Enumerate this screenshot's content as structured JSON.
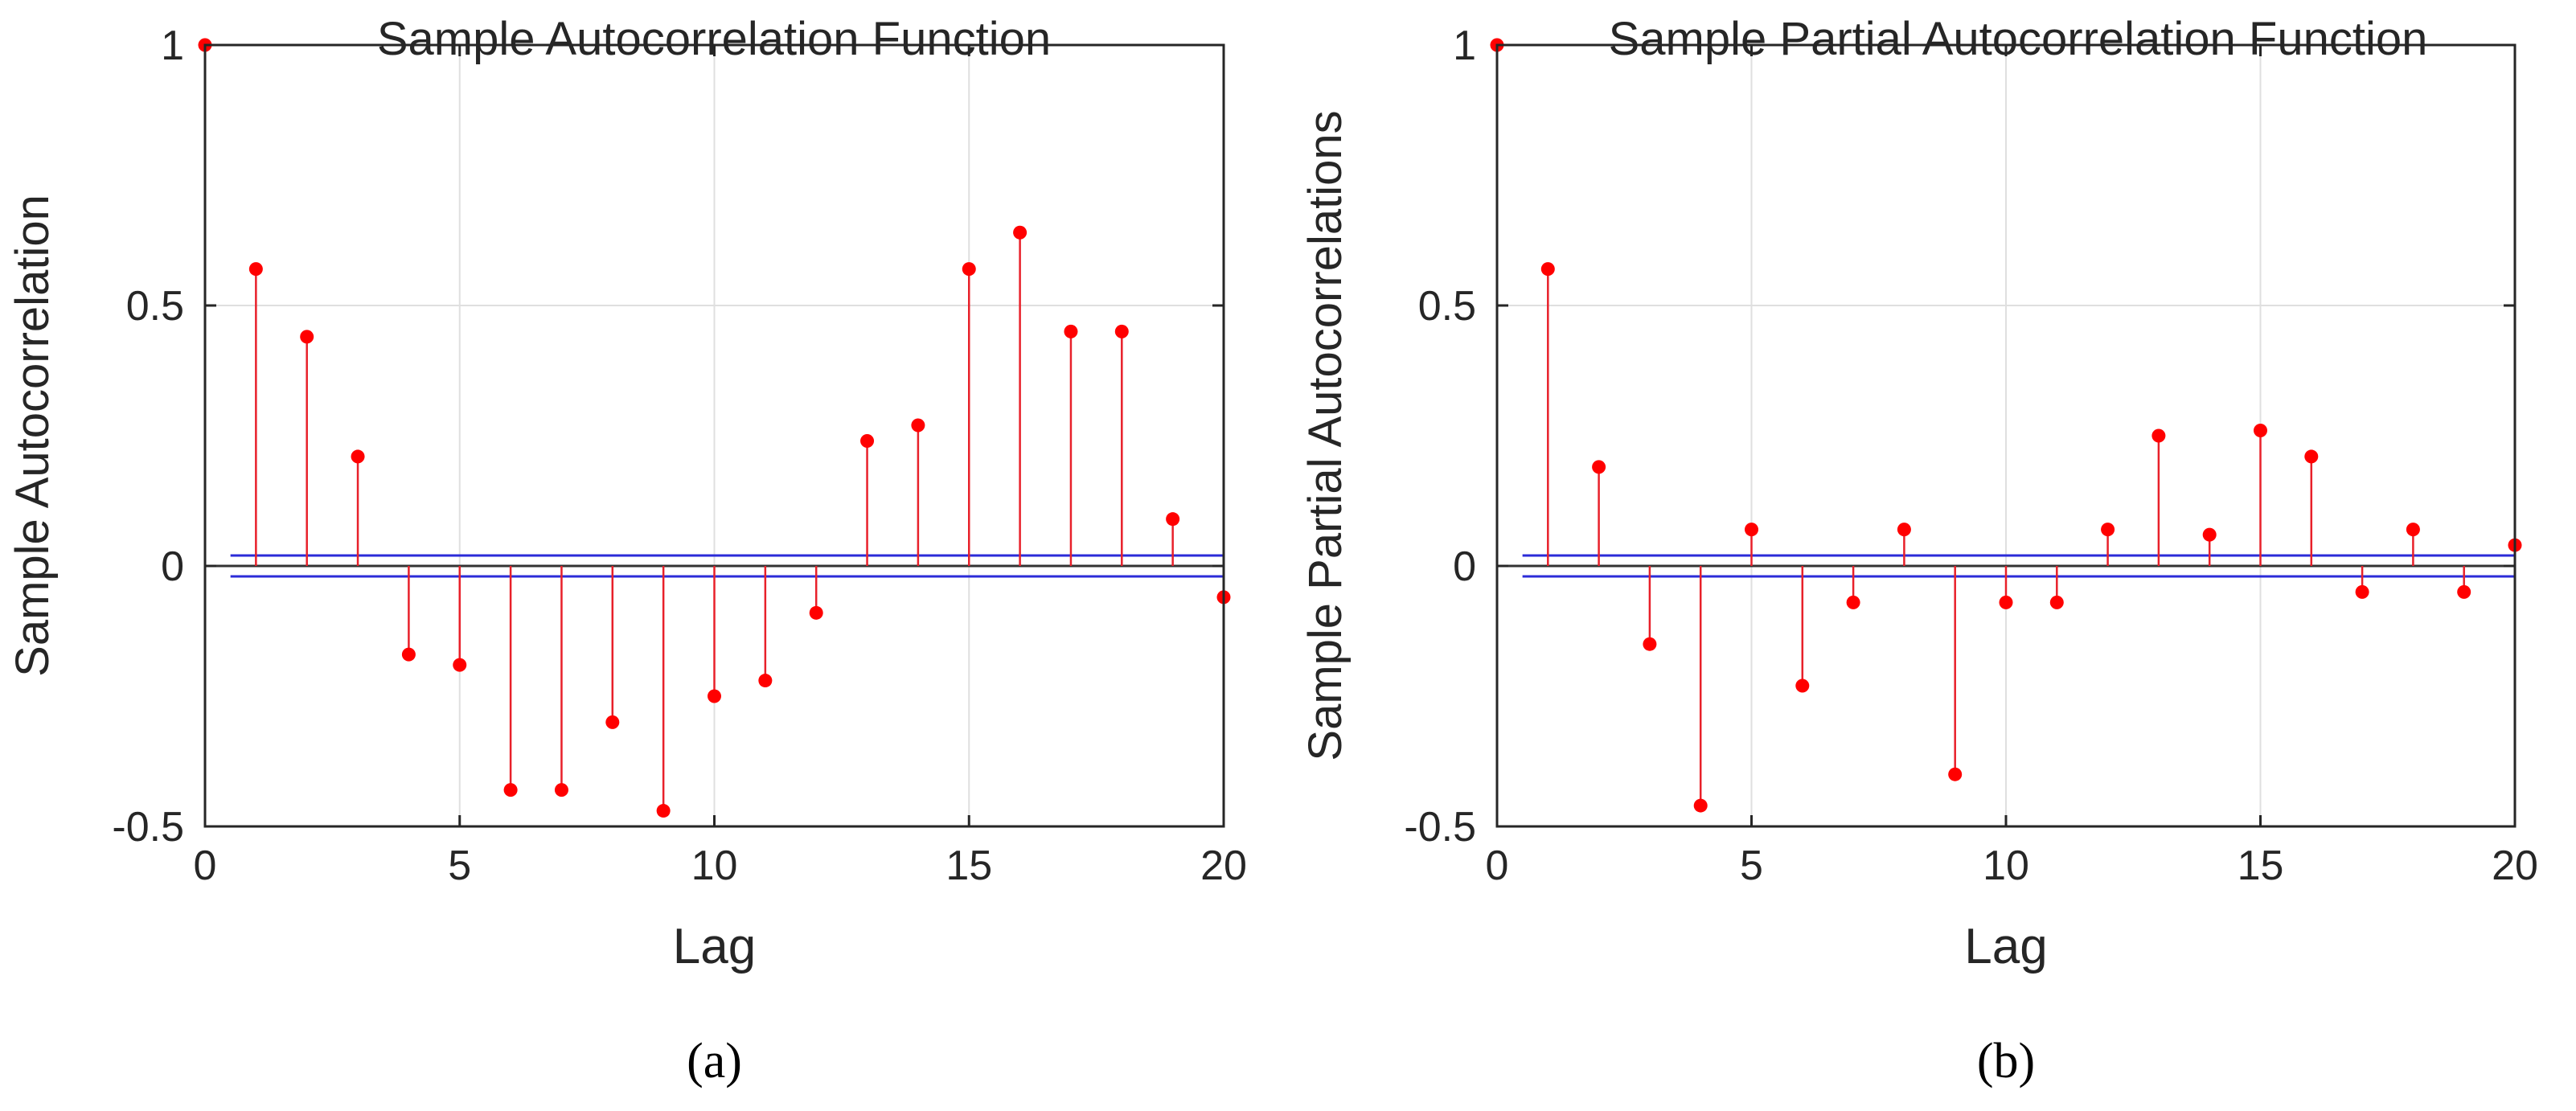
{
  "colors": {
    "stem": "#e8202a",
    "marker": "#ff0000",
    "bound": "#2b2bd8",
    "axis": "#262626",
    "grid": "#dfdfdf"
  },
  "chart_data": [
    {
      "type": "stem",
      "panel_caption": "(a)",
      "title": "Sample Autocorrelation Function",
      "xlabel": "Lag",
      "ylabel": "Sample Autocorrelation",
      "xlim": [
        0,
        20
      ],
      "ylim": [
        -0.5,
        1
      ],
      "xticks": [
        0,
        5,
        10,
        15,
        20
      ],
      "xtick_labels": [
        "0",
        "5",
        "10",
        "15",
        "20"
      ],
      "yticks": [
        -0.5,
        0,
        0.5,
        1
      ],
      "ytick_labels": [
        "-0.5",
        "0",
        "0.5",
        "1"
      ],
      "grid": true,
      "x": [
        0,
        1,
        2,
        3,
        4,
        5,
        6,
        7,
        8,
        9,
        10,
        11,
        12,
        13,
        14,
        15,
        16,
        17,
        18,
        19,
        20
      ],
      "values": [
        1.0,
        0.57,
        0.44,
        0.21,
        -0.17,
        -0.19,
        -0.43,
        -0.43,
        -0.3,
        -0.47,
        -0.25,
        -0.22,
        -0.09,
        0.24,
        0.27,
        0.57,
        0.64,
        0.45,
        0.45,
        0.09,
        -0.06
      ],
      "confidence_bounds": [
        0.02,
        -0.02
      ]
    },
    {
      "type": "stem",
      "panel_caption": "(b)",
      "title": "Sample Partial Autocorrelation Function",
      "xlabel": "Lag",
      "ylabel": "Sample Partial Autocorrelations",
      "xlim": [
        0,
        20
      ],
      "ylim": [
        -0.5,
        1
      ],
      "xticks": [
        0,
        5,
        10,
        15,
        20
      ],
      "xtick_labels": [
        "0",
        "5",
        "10",
        "15",
        "20"
      ],
      "yticks": [
        -0.5,
        0,
        0.5,
        1
      ],
      "ytick_labels": [
        "-0.5",
        "0",
        "0.5",
        "1"
      ],
      "grid": true,
      "x": [
        0,
        1,
        2,
        3,
        4,
        5,
        6,
        7,
        8,
        9,
        10,
        11,
        12,
        13,
        14,
        15,
        16,
        17,
        18,
        19,
        20
      ],
      "values": [
        1.0,
        0.57,
        0.19,
        -0.15,
        -0.46,
        0.07,
        -0.23,
        -0.07,
        0.07,
        -0.4,
        -0.07,
        -0.07,
        0.07,
        0.25,
        0.06,
        0.26,
        0.21,
        -0.05,
        0.07,
        -0.05,
        0.04
      ],
      "confidence_bounds": [
        0.02,
        -0.02
      ]
    }
  ]
}
